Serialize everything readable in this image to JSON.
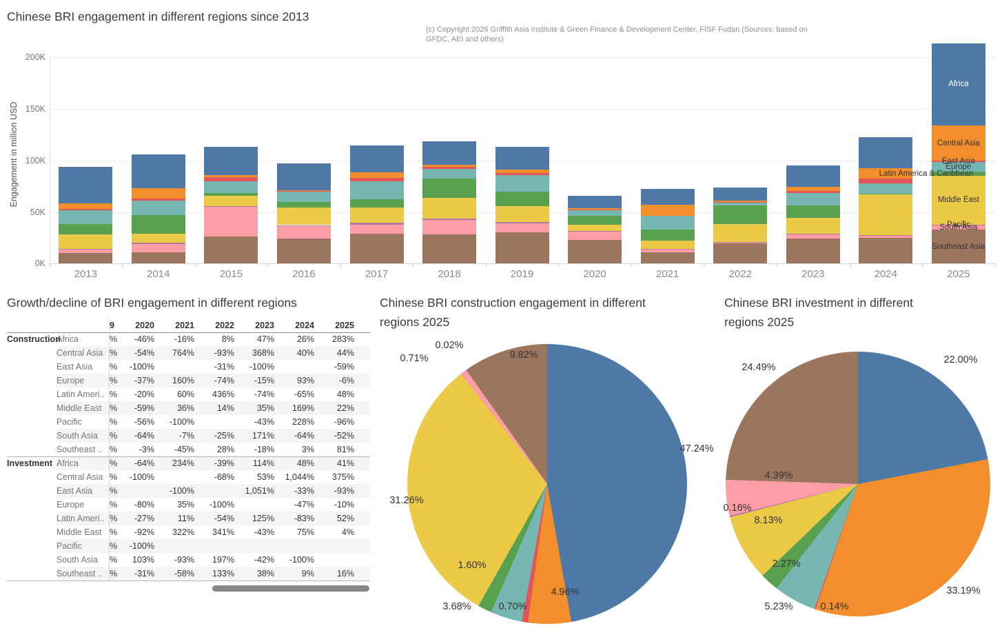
{
  "chart_data": [
    {
      "id": "engagement_stacked_bar",
      "type": "bar",
      "stacked": true,
      "title": "Chinese BRI engagement in different regions since 2013",
      "copyright": [
        "(c) Copyright 2026 Griffith Asia Institute & Green Finance & Development Center, FISF Fudan (Sources: based on",
        "GFDC, AEI and others)"
      ],
      "ylabel": "Engagement in million USD",
      "ytick_labels": [
        "0K",
        "50K",
        "100K",
        "150K",
        "200K"
      ],
      "ytick_values": [
        0,
        50,
        100,
        150,
        200
      ],
      "values_unit": "thousand million USD (K)",
      "ylim": [
        0,
        215
      ],
      "grid": true,
      "categories": [
        "2013",
        "2014",
        "2015",
        "2016",
        "2017",
        "2018",
        "2019",
        "2020",
        "2021",
        "2022",
        "2023",
        "2024",
        "2025"
      ],
      "series": [
        {
          "name": "Africa",
          "color": "#4e79a7",
          "values": [
            35,
            33,
            27,
            26,
            26,
            23,
            22,
            12,
            15.5,
            13,
            21,
            30,
            80
          ]
        },
        {
          "name": "Central Asia",
          "color": "#f28e2b",
          "values": [
            5.5,
            10,
            2.5,
            1,
            5.5,
            2,
            3.5,
            1,
            11,
            1.5,
            4,
            10,
            34
          ]
        },
        {
          "name": "East Asia",
          "color": "#e15759",
          "values": [
            1.5,
            2,
            4,
            0.5,
            3.5,
            2,
            2,
            0.5,
            0,
            0.5,
            1.8,
            4.5,
            1
          ]
        },
        {
          "name": "Europe",
          "color": "#76b7b2",
          "values": [
            13,
            14,
            11,
            10,
            17,
            9,
            15.5,
            5.5,
            13,
            2.7,
            12,
            10.5,
            9.5
          ]
        },
        {
          "name": "Latin America & Caribbean",
          "color": "#59a14f",
          "values": [
            10,
            18,
            3,
            5.5,
            8,
            19,
            14.5,
            9,
            11,
            18,
            12.4,
            0.7,
            4
          ]
        },
        {
          "name": "Middle East",
          "color": "#edc948",
          "values": [
            14,
            9,
            10,
            17,
            15,
            20,
            15.5,
            6,
            8,
            17,
            15,
            39,
            47.5
          ]
        },
        {
          "name": "Pacific",
          "color": "#b07aa1",
          "values": [
            0.5,
            1,
            0.5,
            0.3,
            2,
            1,
            1,
            0.4,
            0.2,
            0.2,
            0.3,
            0.1,
            0.2
          ]
        },
        {
          "name": "South Asia",
          "color": "#ff9da7",
          "values": [
            4,
            8,
            29,
            13,
            8.5,
            14.5,
            9,
            8,
            3.3,
            1.5,
            4.4,
            2.7,
            4.6
          ]
        },
        {
          "name": "Southeast Asia",
          "color": "#9c755f",
          "values": [
            10,
            11,
            26,
            24,
            29,
            28,
            30,
            23,
            10.7,
            19.5,
            24.4,
            25,
            33
          ]
        }
      ],
      "labeled_category": "2025",
      "stack_order_note": "bottom-to-top: Southeast Asia ... Africa"
    },
    {
      "id": "construction_pie",
      "type": "pie",
      "title_line1": "Chinese BRI construction engagement in different",
      "title_line2": "regions 2025",
      "slices": [
        {
          "name": "Africa",
          "pct": 47.24,
          "pct_label": "47.24%",
          "color": "#4e79a7"
        },
        {
          "name": "Central Asia",
          "pct": 4.96,
          "pct_label": "4.96%",
          "color": "#f28e2b"
        },
        {
          "name": "East Asia",
          "pct": 0.7,
          "pct_label": "0.70%",
          "color": "#e15759"
        },
        {
          "name": "Europe",
          "pct": 3.68,
          "pct_label": "3.68%",
          "color": "#76b7b2"
        },
        {
          "name": "Latin America & Caribbean",
          "pct": 1.6,
          "pct_label": "1.60%",
          "color": "#59a14f"
        },
        {
          "name": "Middle East",
          "pct": 31.26,
          "pct_label": "31.26%",
          "color": "#edc948"
        },
        {
          "name": "Pacific",
          "pct": 0.02,
          "pct_label": "0.02%",
          "color": "#b07aa1"
        },
        {
          "name": "South Asia",
          "pct": 0.71,
          "pct_label": "0.71%",
          "color": "#ff9da7"
        },
        {
          "name": "Southeast Asia",
          "pct": 9.82,
          "pct_label": "9.82%",
          "color": "#9c755f"
        }
      ]
    },
    {
      "id": "investment_pie",
      "type": "pie",
      "title_line1": "Chinese BRI investment in different",
      "title_line2": "regions 2025",
      "slices": [
        {
          "name": "Africa",
          "pct": 22.0,
          "pct_label": "22.00%",
          "color": "#4e79a7"
        },
        {
          "name": "Central Asia",
          "pct": 33.19,
          "pct_label": "33.19%",
          "color": "#f28e2b"
        },
        {
          "name": "East Asia",
          "pct": 0.14,
          "pct_label": "0.14%",
          "color": "#e15759"
        },
        {
          "name": "Europe",
          "pct": 5.23,
          "pct_label": "5.23%",
          "color": "#76b7b2"
        },
        {
          "name": "Latin America & Caribbean",
          "pct": 2.27,
          "pct_label": "2.27%",
          "color": "#59a14f"
        },
        {
          "name": "Middle East",
          "pct": 8.13,
          "pct_label": "8.13%",
          "color": "#edc948"
        },
        {
          "name": "Pacific",
          "pct": 0.16,
          "pct_label": "0.16%",
          "color": "#b07aa1"
        },
        {
          "name": "South Asia",
          "pct": 4.39,
          "pct_label": "4.39%",
          "color": "#ff9da7"
        },
        {
          "name": "Southeast Asia",
          "pct": 24.49,
          "pct_label": "24.49%",
          "color": "#9c755f"
        }
      ]
    },
    {
      "id": "growth_table",
      "type": "table",
      "title": "Growth/decline of BRI engagement in different regions",
      "clipped_col_header": "9",
      "clipped_col_value": "%",
      "col_headers": [
        "2020",
        "2021",
        "2022",
        "2023",
        "2024",
        "2025"
      ],
      "groups": [
        {
          "label": "Construction",
          "rows": [
            {
              "region": "Africa",
              "values": [
                "-46%",
                "-16%",
                "8%",
                "47%",
                "26%",
                "283%"
              ]
            },
            {
              "region": "Central Asia",
              "values": [
                "-54%",
                "764%",
                "-93%",
                "368%",
                "40%",
                "44%"
              ]
            },
            {
              "region": "East Asia",
              "values": [
                "-100%",
                "",
                "-31%",
                "-100%",
                "",
                "-59%"
              ]
            },
            {
              "region": "Europe",
              "values": [
                "-37%",
                "160%",
                "-74%",
                "-15%",
                "93%",
                "-6%"
              ]
            },
            {
              "region": "Latin Ameri..",
              "values": [
                "-20%",
                "60%",
                "436%",
                "-74%",
                "-65%",
                "48%"
              ]
            },
            {
              "region": "Middle East",
              "values": [
                "-59%",
                "36%",
                "14%",
                "35%",
                "169%",
                "22%"
              ]
            },
            {
              "region": "Pacific",
              "values": [
                "-56%",
                "-100%",
                "",
                "-43%",
                "228%",
                "-96%"
              ]
            },
            {
              "region": "South Asia",
              "values": [
                "-64%",
                "-7%",
                "-25%",
                "171%",
                "-64%",
                "-52%"
              ]
            },
            {
              "region": "Southeast ..",
              "values": [
                "-3%",
                "-45%",
                "28%",
                "-18%",
                "3%",
                "81%"
              ]
            }
          ]
        },
        {
          "label": "Investment",
          "rows": [
            {
              "region": "Africa",
              "values": [
                "-64%",
                "234%",
                "-39%",
                "114%",
                "48%",
                "41%"
              ]
            },
            {
              "region": "Central Asia",
              "values": [
                "-100%",
                "",
                "-68%",
                "53%",
                "1,044%",
                "375%"
              ]
            },
            {
              "region": "East Asia",
              "values": [
                "",
                "-100%",
                "",
                "1,051%",
                "-33%",
                "-93%"
              ]
            },
            {
              "region": "Europe",
              "values": [
                "-80%",
                "35%",
                "-100%",
                "",
                "-47%",
                "-10%"
              ]
            },
            {
              "region": "Latin Ameri..",
              "values": [
                "-27%",
                "11%",
                "-54%",
                "125%",
                "-83%",
                "52%"
              ]
            },
            {
              "region": "Middle East",
              "values": [
                "-92%",
                "322%",
                "341%",
                "-43%",
                "75%",
                "4%"
              ]
            },
            {
              "region": "Pacific",
              "values": [
                "-100%",
                "",
                "",
                "",
                "",
                ""
              ]
            },
            {
              "region": "South Asia",
              "values": [
                "103%",
                "-93%",
                "197%",
                "-42%",
                "-100%",
                ""
              ]
            },
            {
              "region": "Southeast ..",
              "values": [
                "-31%",
                "-58%",
                "133%",
                "38%",
                "9%",
                "16%"
              ]
            }
          ]
        }
      ]
    }
  ],
  "colors": {
    "Africa": "#4e79a7",
    "Central Asia": "#f28e2b",
    "East Asia": "#e15759",
    "Europe": "#76b7b2",
    "Latin America & Caribbean": "#59a14f",
    "Middle East": "#edc948",
    "Pacific": "#b07aa1",
    "South Asia": "#ff9da7",
    "Southeast Asia": "#9c755f"
  }
}
